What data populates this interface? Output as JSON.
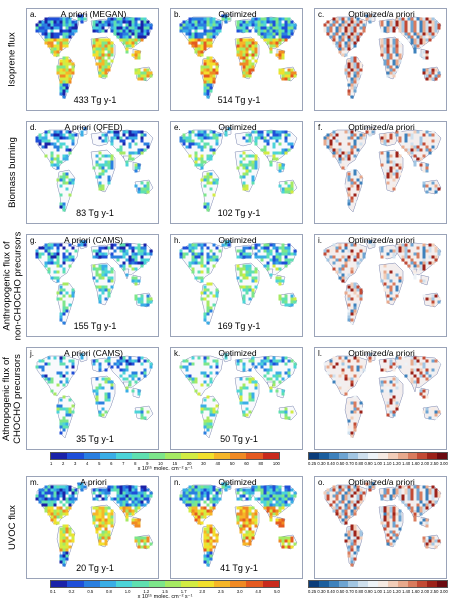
{
  "rows": [
    {
      "label": "Isoprene flux",
      "panels": [
        {
          "letter": "a.",
          "title": "A priori (MEGAN)",
          "total": "433 Tg y-1"
        },
        {
          "letter": "b.",
          "title": "Optimized",
          "total": "514 Tg y-1"
        },
        {
          "letter": "c.",
          "title": "Optimized/a priori",
          "total": ""
        }
      ]
    },
    {
      "label": "Biomass burning",
      "panels": [
        {
          "letter": "d.",
          "title": "A priori (QFED)",
          "total": "83 Tg y-1"
        },
        {
          "letter": "e.",
          "title": "Optimized",
          "total": "102 Tg y-1"
        },
        {
          "letter": "f.",
          "title": "Optimized/a priori",
          "total": ""
        }
      ]
    },
    {
      "label": "Anthropogenic flux of\nnon-CHOCHO precursors",
      "panels": [
        {
          "letter": "g.",
          "title": "A priori (CAMS)",
          "total": "155 Tg y-1"
        },
        {
          "letter": "h.",
          "title": "Optimized",
          "total": "169 Tg y-1"
        },
        {
          "letter": "i.",
          "title": "Optimized/a priori",
          "total": ""
        }
      ]
    },
    {
      "label": "Athropogenic flux of\nCHOCHO precursors",
      "panels": [
        {
          "letter": "j.",
          "title": "A priori (CAMS)",
          "total": "35 Tg y-1"
        },
        {
          "letter": "k.",
          "title": "Optimized",
          "total": "50 Tg y-1"
        },
        {
          "letter": "l.",
          "title": "Optimized/a priori",
          "total": ""
        }
      ]
    },
    {
      "label": "UVOC flux",
      "panels": [
        {
          "letter": "m.",
          "title": "A priori",
          "total": "20 Tg y-1"
        },
        {
          "letter": "n.",
          "title": "Optimized",
          "total": "41 Tg y-1"
        },
        {
          "letter": "o.",
          "title": "Optimized/a priori",
          "total": ""
        }
      ]
    }
  ],
  "colorbars": {
    "flux1": {
      "ticks": [
        "1",
        "2",
        "3",
        "4",
        "5",
        "6",
        "7",
        "8",
        "9",
        "10",
        "15",
        "20",
        "30",
        "40",
        "50",
        "60",
        "80",
        "100"
      ],
      "units": "x 10¹⁵ molec. cm⁻² s⁻¹"
    },
    "flux2": {
      "ticks": [
        "0.1",
        "0.2",
        "0.5",
        "0.8",
        "1.0",
        "1.2",
        "1.5",
        "1.7",
        "2.0",
        "2.5",
        "3.0",
        "4.0",
        "5.0"
      ],
      "units": "x 10¹⁵ molec. cm⁻² s⁻¹"
    },
    "ratio": {
      "ticks": [
        "0.25",
        "0.30",
        "0.40",
        "0.50",
        "0.70",
        "0.80",
        "0.90",
        "1.00",
        "1.10",
        "1.20",
        "1.40",
        "1.60",
        "2.00",
        "2.50",
        "3.00"
      ]
    }
  },
  "colors": {
    "flux_scale": [
      "#1a22a8",
      "#1f4fd8",
      "#2a7fe0",
      "#3aaee6",
      "#4cd4d8",
      "#5fe0b0",
      "#7de68a",
      "#a6ea62",
      "#d2ec42",
      "#f2e02c",
      "#f6b628",
      "#f08a24",
      "#e45a20",
      "#c82a1c"
    ],
    "ratio_scale": [
      "#0b3d7a",
      "#1c5f9e",
      "#3d81bc",
      "#6da4d2",
      "#a2c6e3",
      "#cfe0ee",
      "#eef3f7",
      "#f7ebe3",
      "#f2cdb8",
      "#e8a98c",
      "#d97b5d",
      "#c24a34",
      "#9c2219",
      "#6b0a10"
    ]
  }
}
